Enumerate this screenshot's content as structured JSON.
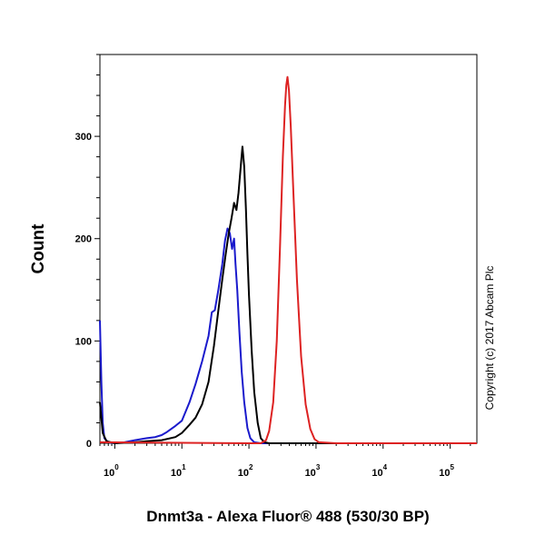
{
  "chart_data": {
    "type": "line",
    "title": "",
    "xlabel": "Dnmt3a - Alexa Fluor® 488 (530/30 BP)",
    "ylabel": "Count",
    "xscale": "log",
    "xlim": [
      0.6,
      250000
    ],
    "ylim": [
      0,
      380
    ],
    "grid": false,
    "legend": "none",
    "copyright": "Copyright (c) 2017 Abcam Plc",
    "x_ticks": [
      {
        "base": "10",
        "exp": "0",
        "value": 1
      },
      {
        "base": "10",
        "exp": "1",
        "value": 10
      },
      {
        "base": "10",
        "exp": "2",
        "value": 100
      },
      {
        "base": "10",
        "exp": "3",
        "value": 1000
      },
      {
        "base": "10",
        "exp": "4",
        "value": 10000
      },
      {
        "base": "10",
        "exp": "5",
        "value": 100000
      }
    ],
    "y_ticks": [
      0,
      100,
      200,
      300
    ],
    "series": [
      {
        "color": "#1a1acc",
        "points": [
          [
            0.6,
            120
          ],
          [
            0.63,
            60
          ],
          [
            0.66,
            20
          ],
          [
            0.7,
            5
          ],
          [
            0.8,
            1
          ],
          [
            1,
            0
          ],
          [
            1.4,
            1
          ],
          [
            2,
            3
          ],
          [
            3,
            5
          ],
          [
            4,
            6
          ],
          [
            5,
            8
          ],
          [
            6,
            11
          ],
          [
            8,
            17
          ],
          [
            10,
            22
          ],
          [
            13,
            40
          ],
          [
            16,
            58
          ],
          [
            20,
            80
          ],
          [
            25,
            105
          ],
          [
            28,
            128
          ],
          [
            31,
            130
          ],
          [
            35,
            150
          ],
          [
            40,
            175
          ],
          [
            44,
            198
          ],
          [
            48,
            210
          ],
          [
            52,
            205
          ],
          [
            56,
            190
          ],
          [
            60,
            200
          ],
          [
            63,
            175
          ],
          [
            67,
            150
          ],
          [
            72,
            110
          ],
          [
            78,
            70
          ],
          [
            85,
            40
          ],
          [
            95,
            15
          ],
          [
            105,
            5
          ],
          [
            120,
            1
          ],
          [
            150,
            0
          ],
          [
            250000,
            0
          ]
        ]
      },
      {
        "color": "#000000",
        "points": [
          [
            0.6,
            40
          ],
          [
            0.66,
            10
          ],
          [
            0.75,
            2
          ],
          [
            1,
            0
          ],
          [
            2,
            1
          ],
          [
            3,
            2
          ],
          [
            5,
            3
          ],
          [
            8,
            6
          ],
          [
            10,
            10
          ],
          [
            13,
            18
          ],
          [
            16,
            25
          ],
          [
            20,
            38
          ],
          [
            25,
            60
          ],
          [
            30,
            95
          ],
          [
            35,
            130
          ],
          [
            40,
            160
          ],
          [
            45,
            185
          ],
          [
            50,
            205
          ],
          [
            55,
            220
          ],
          [
            60,
            235
          ],
          [
            65,
            228
          ],
          [
            70,
            245
          ],
          [
            75,
            268
          ],
          [
            80,
            290
          ],
          [
            85,
            270
          ],
          [
            90,
            230
          ],
          [
            95,
            185
          ],
          [
            100,
            145
          ],
          [
            110,
            90
          ],
          [
            120,
            50
          ],
          [
            135,
            20
          ],
          [
            150,
            5
          ],
          [
            170,
            1
          ],
          [
            200,
            0
          ],
          [
            250000,
            0
          ]
        ]
      },
      {
        "color": "#dd2222",
        "points": [
          [
            0.6,
            1
          ],
          [
            100,
            0
          ],
          [
            150,
            0
          ],
          [
            180,
            3
          ],
          [
            200,
            12
          ],
          [
            230,
            40
          ],
          [
            260,
            100
          ],
          [
            290,
            190
          ],
          [
            320,
            280
          ],
          [
            345,
            330
          ],
          [
            360,
            350
          ],
          [
            375,
            358
          ],
          [
            395,
            345
          ],
          [
            420,
            310
          ],
          [
            460,
            245
          ],
          [
            520,
            160
          ],
          [
            600,
            85
          ],
          [
            700,
            38
          ],
          [
            820,
            14
          ],
          [
            950,
            4
          ],
          [
            1100,
            1
          ],
          [
            2000,
            0
          ],
          [
            250000,
            0
          ]
        ]
      }
    ]
  }
}
